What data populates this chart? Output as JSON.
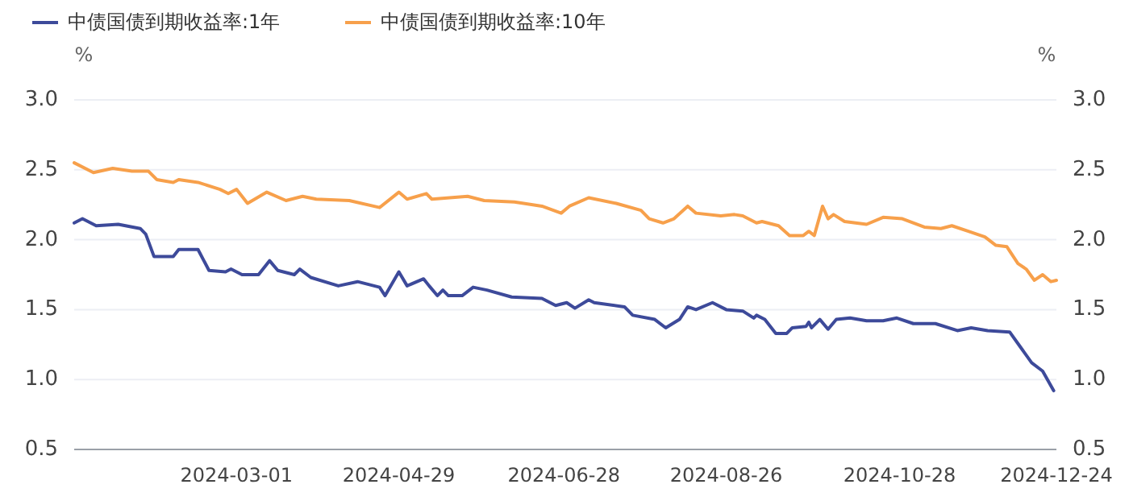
{
  "chart_data": {
    "type": "line",
    "ylabel": "%",
    "y2label": "%",
    "legend": "top left",
    "grid": "y",
    "xlim": [
      "2024-01-02",
      "2024-12-24"
    ],
    "xticks": [
      "2024-03-01",
      "2024-04-29",
      "2024-06-28",
      "2024-08-26",
      "2024-10-28",
      "2024-12-24"
    ],
    "ylim": [
      0.5,
      3.0
    ],
    "yticks": [
      0.5,
      {
        "value": 1,
        "label": "1.0"
      },
      1.5,
      {
        "value": 2,
        "label": "2.0"
      },
      2.5,
      {
        "value": 3,
        "label": "3.0"
      }
    ],
    "y2lim": [
      0.5,
      3.0
    ],
    "y2ticks": [
      0.5,
      {
        "value": 1,
        "label": "1.0"
      },
      1.5,
      {
        "value": 2,
        "label": "2.0"
      },
      2.5,
      {
        "value": 3,
        "label": "3.0"
      }
    ],
    "series": [
      {
        "name": "中债国债到期收益率:1年",
        "color": "#3d4a9a",
        "x": [
          "2024-01-02",
          "2024-01-05",
          "2024-01-10",
          "2024-01-18",
          "2024-01-26",
          "2024-01-28",
          "2024-01-31",
          "2024-02-07",
          "2024-02-09",
          "2024-02-16",
          "2024-02-20",
          "2024-02-26",
          "2024-02-28",
          "2024-03-03",
          "2024-03-09",
          "2024-03-13",
          "2024-03-16",
          "2024-03-22",
          "2024-03-24",
          "2024-03-28",
          "2024-04-07",
          "2024-04-14",
          "2024-04-22",
          "2024-04-24",
          "2024-04-29",
          "2024-05-02",
          "2024-05-08",
          "2024-05-10",
          "2024-05-13",
          "2024-05-15",
          "2024-05-17",
          "2024-05-22",
          "2024-05-26",
          "2024-05-31",
          "2024-06-09",
          "2024-06-20",
          "2024-06-25",
          "2024-06-29",
          "2024-07-02",
          "2024-07-07",
          "2024-07-09",
          "2024-07-20",
          "2024-07-23",
          "2024-07-31",
          "2024-08-04",
          "2024-08-09",
          "2024-08-12",
          "2024-08-15",
          "2024-08-21",
          "2024-08-26",
          "2024-09-01",
          "2024-09-05",
          "2024-09-06",
          "2024-09-09",
          "2024-09-13",
          "2024-09-17",
          "2024-09-19",
          "2024-09-24",
          "2024-09-25",
          "2024-09-26",
          "2024-09-29",
          "2024-10-02",
          "2024-10-05",
          "2024-10-10",
          "2024-10-16",
          "2024-10-22",
          "2024-10-27",
          "2024-11-02",
          "2024-11-10",
          "2024-11-18",
          "2024-11-23",
          "2024-11-29",
          "2024-12-07",
          "2024-12-11",
          "2024-12-15",
          "2024-12-19",
          "2024-12-23"
        ],
        "values": [
          2.12,
          2.15,
          2.1,
          2.11,
          2.08,
          2.04,
          1.88,
          1.88,
          1.93,
          1.93,
          1.78,
          1.77,
          1.79,
          1.75,
          1.75,
          1.85,
          1.78,
          1.75,
          1.79,
          1.73,
          1.67,
          1.7,
          1.66,
          1.6,
          1.77,
          1.67,
          1.72,
          1.67,
          1.6,
          1.64,
          1.6,
          1.6,
          1.66,
          1.64,
          1.59,
          1.58,
          1.53,
          1.55,
          1.51,
          1.57,
          1.55,
          1.52,
          1.46,
          1.43,
          1.37,
          1.43,
          1.52,
          1.5,
          1.55,
          1.5,
          1.49,
          1.44,
          1.46,
          1.43,
          1.33,
          1.33,
          1.37,
          1.38,
          1.41,
          1.37,
          1.43,
          1.36,
          1.43,
          1.44,
          1.42,
          1.42,
          1.44,
          1.4,
          1.4,
          1.35,
          1.37,
          1.35,
          1.34,
          1.23,
          1.12,
          1.06,
          0.92
        ]
      },
      {
        "name": "中债国债到期收益率:10年",
        "color": "#f7a04b",
        "x": [
          "2024-01-02",
          "2024-01-09",
          "2024-01-16",
          "2024-01-23",
          "2024-01-29",
          "2024-02-01",
          "2024-02-07",
          "2024-02-09",
          "2024-02-16",
          "2024-02-24",
          "2024-02-27",
          "2024-03-01",
          "2024-03-05",
          "2024-03-12",
          "2024-03-19",
          "2024-03-25",
          "2024-03-30",
          "2024-04-11",
          "2024-04-22",
          "2024-04-29",
          "2024-05-02",
          "2024-05-09",
          "2024-05-11",
          "2024-05-24",
          "2024-05-30",
          "2024-06-10",
          "2024-06-20",
          "2024-06-27",
          "2024-06-30",
          "2024-07-07",
          "2024-07-17",
          "2024-07-26",
          "2024-07-29",
          "2024-08-03",
          "2024-08-07",
          "2024-08-12",
          "2024-08-15",
          "2024-08-24",
          "2024-08-29",
          "2024-09-01",
          "2024-09-06",
          "2024-09-08",
          "2024-09-14",
          "2024-09-18",
          "2024-09-23",
          "2024-09-25",
          "2024-09-27",
          "2024-09-30",
          "2024-10-02",
          "2024-10-04",
          "2024-10-08",
          "2024-10-16",
          "2024-10-22",
          "2024-10-29",
          "2024-11-06",
          "2024-11-12",
          "2024-11-16",
          "2024-11-22",
          "2024-11-28",
          "2024-12-02",
          "2024-12-06",
          "2024-12-10",
          "2024-12-13",
          "2024-12-16",
          "2024-12-19",
          "2024-12-22",
          "2024-12-24"
        ],
        "values": [
          2.55,
          2.48,
          2.51,
          2.49,
          2.49,
          2.43,
          2.41,
          2.43,
          2.41,
          2.36,
          2.33,
          2.36,
          2.26,
          2.34,
          2.28,
          2.31,
          2.29,
          2.28,
          2.23,
          2.34,
          2.29,
          2.33,
          2.29,
          2.31,
          2.28,
          2.27,
          2.24,
          2.19,
          2.24,
          2.3,
          2.26,
          2.21,
          2.15,
          2.12,
          2.15,
          2.24,
          2.19,
          2.17,
          2.18,
          2.17,
          2.12,
          2.13,
          2.1,
          2.03,
          2.03,
          2.06,
          2.03,
          2.24,
          2.15,
          2.18,
          2.13,
          2.11,
          2.16,
          2.15,
          2.09,
          2.08,
          2.1,
          2.06,
          2.02,
          1.96,
          1.95,
          1.83,
          1.79,
          1.71,
          1.75,
          1.7,
          1.71
        ]
      }
    ]
  }
}
